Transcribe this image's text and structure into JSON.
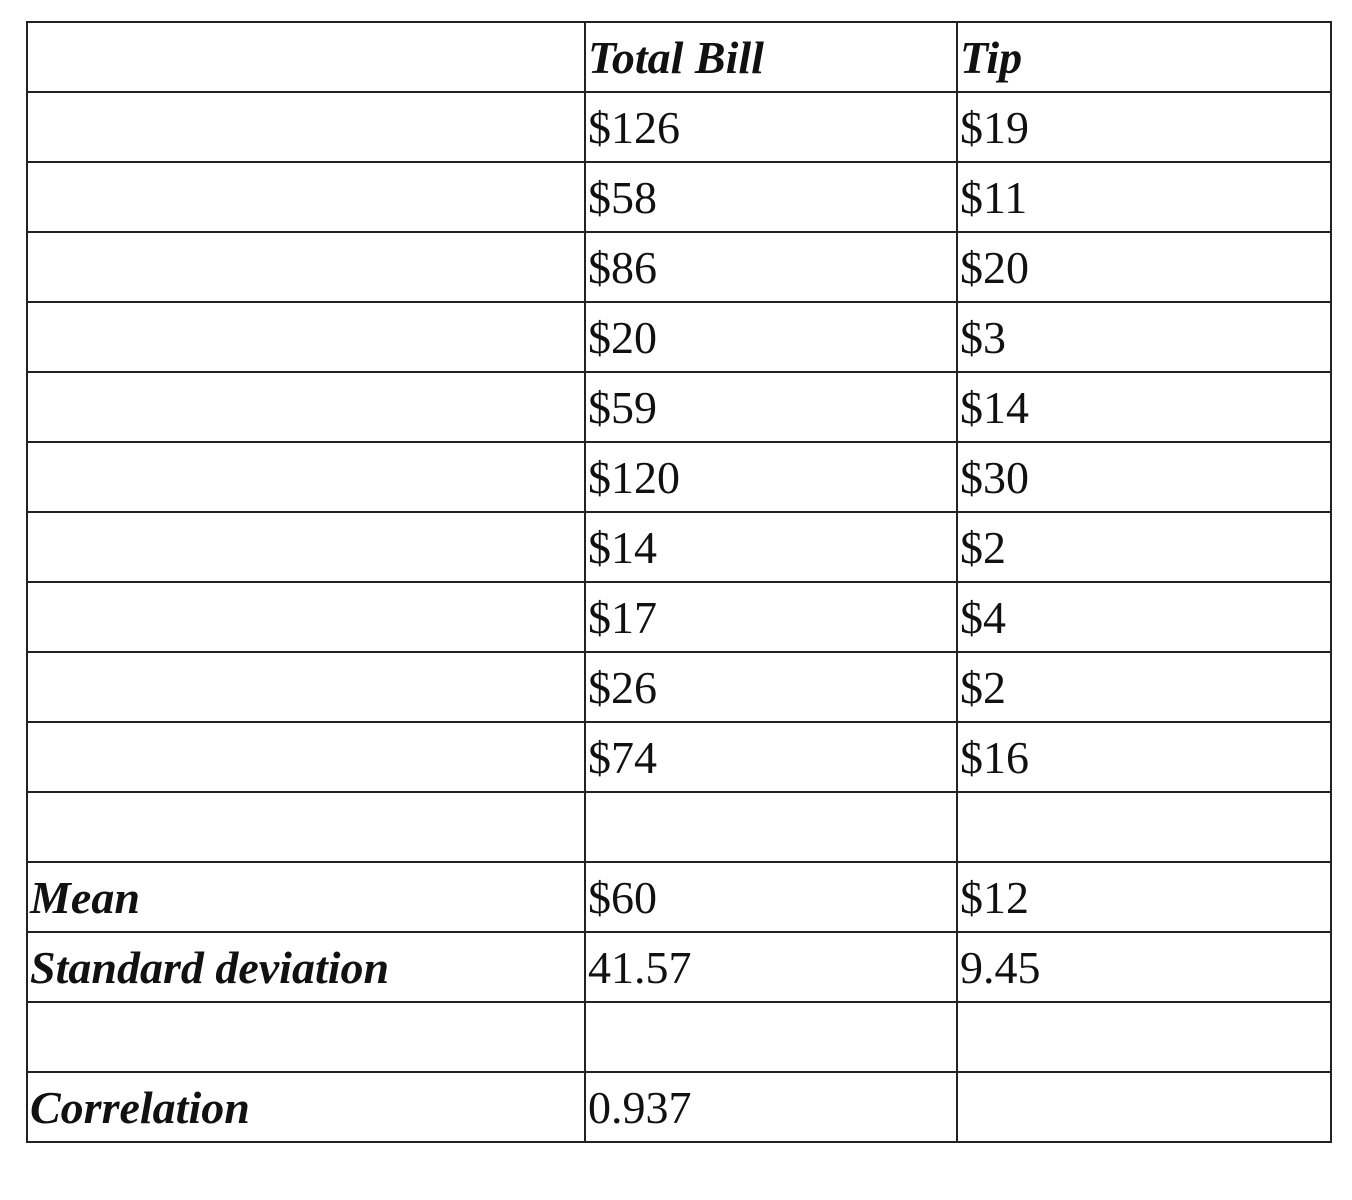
{
  "table": {
    "header": [
      null,
      "Total Bill",
      "Tip"
    ],
    "rows": [
      [
        null,
        "$126",
        "$19"
      ],
      [
        null,
        "$58",
        "$11"
      ],
      [
        null,
        "$86",
        "$20"
      ],
      [
        null,
        "$20",
        "$3"
      ],
      [
        null,
        "$59",
        "$14"
      ],
      [
        null,
        "$120",
        "$30"
      ],
      [
        null,
        "$14",
        "$2"
      ],
      [
        null,
        "$17",
        "$4"
      ],
      [
        null,
        "$26",
        "$2"
      ],
      [
        null,
        "$74",
        "$16"
      ],
      [
        null,
        null,
        null
      ],
      [
        "Mean",
        "$60",
        "$12"
      ],
      [
        "Standard deviation",
        "41.57",
        "9.45"
      ],
      [
        null,
        null,
        null
      ],
      [
        "Correlation",
        "0.937",
        null
      ]
    ]
  }
}
